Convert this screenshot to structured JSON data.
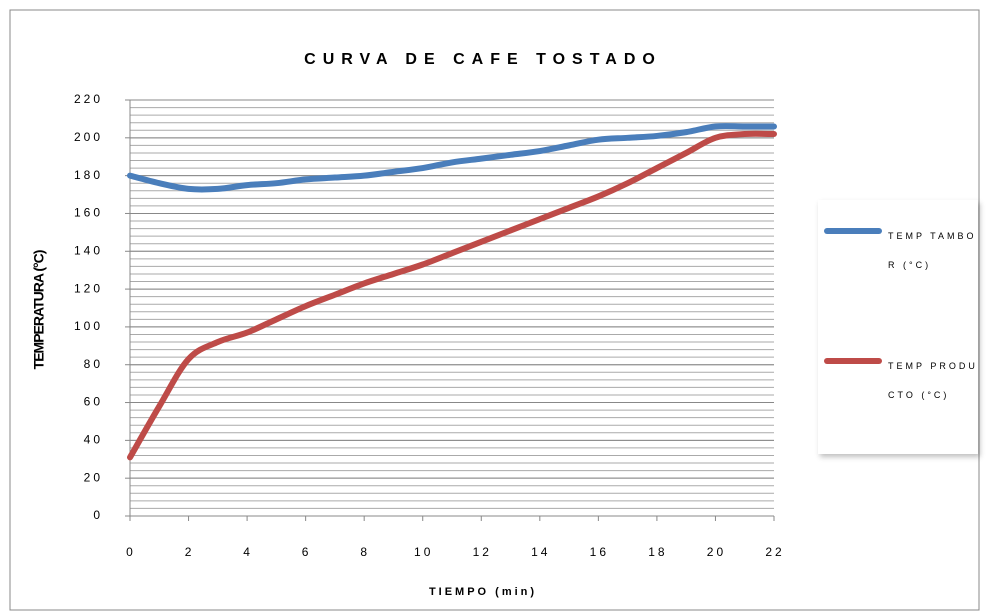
{
  "chart_data": {
    "type": "line",
    "title": "CURVA DE CAFE TOSTADO",
    "x_label": "TIEMPO (min)",
    "y_label": "TEMPERATURA (°C)",
    "x": [
      0,
      1,
      2,
      3,
      4,
      5,
      6,
      7,
      8,
      9,
      10,
      11,
      12,
      13,
      14,
      15,
      16,
      17,
      18,
      19,
      20,
      21,
      22
    ],
    "series": [
      {
        "name": "TEMP TAMBOR (°C)",
        "color": "#4a7ebb",
        "values": [
          180,
          176,
          173,
          173,
          175,
          176,
          178,
          179,
          180,
          182,
          184,
          187,
          189,
          191,
          193,
          196,
          199,
          200,
          201,
          203,
          206,
          206,
          206
        ]
      },
      {
        "name": "TEMP PRODUCTO (°C)",
        "color": "#be4b48",
        "values": [
          31,
          58,
          83,
          92,
          97,
          104,
          111,
          117,
          123,
          128,
          133,
          139,
          145,
          151,
          157,
          163,
          169,
          176,
          184,
          192,
          200,
          202,
          202
        ]
      }
    ],
    "xlim": [
      0,
      22
    ],
    "xticks": [
      0,
      2,
      4,
      6,
      8,
      10,
      12,
      14,
      16,
      18,
      20,
      22
    ],
    "ylim": [
      0,
      220
    ],
    "yticks": [
      0,
      20,
      40,
      60,
      80,
      100,
      120,
      140,
      160,
      180,
      200,
      220
    ],
    "grid": true,
    "minor_grid_step": 4,
    "legend": "right"
  }
}
